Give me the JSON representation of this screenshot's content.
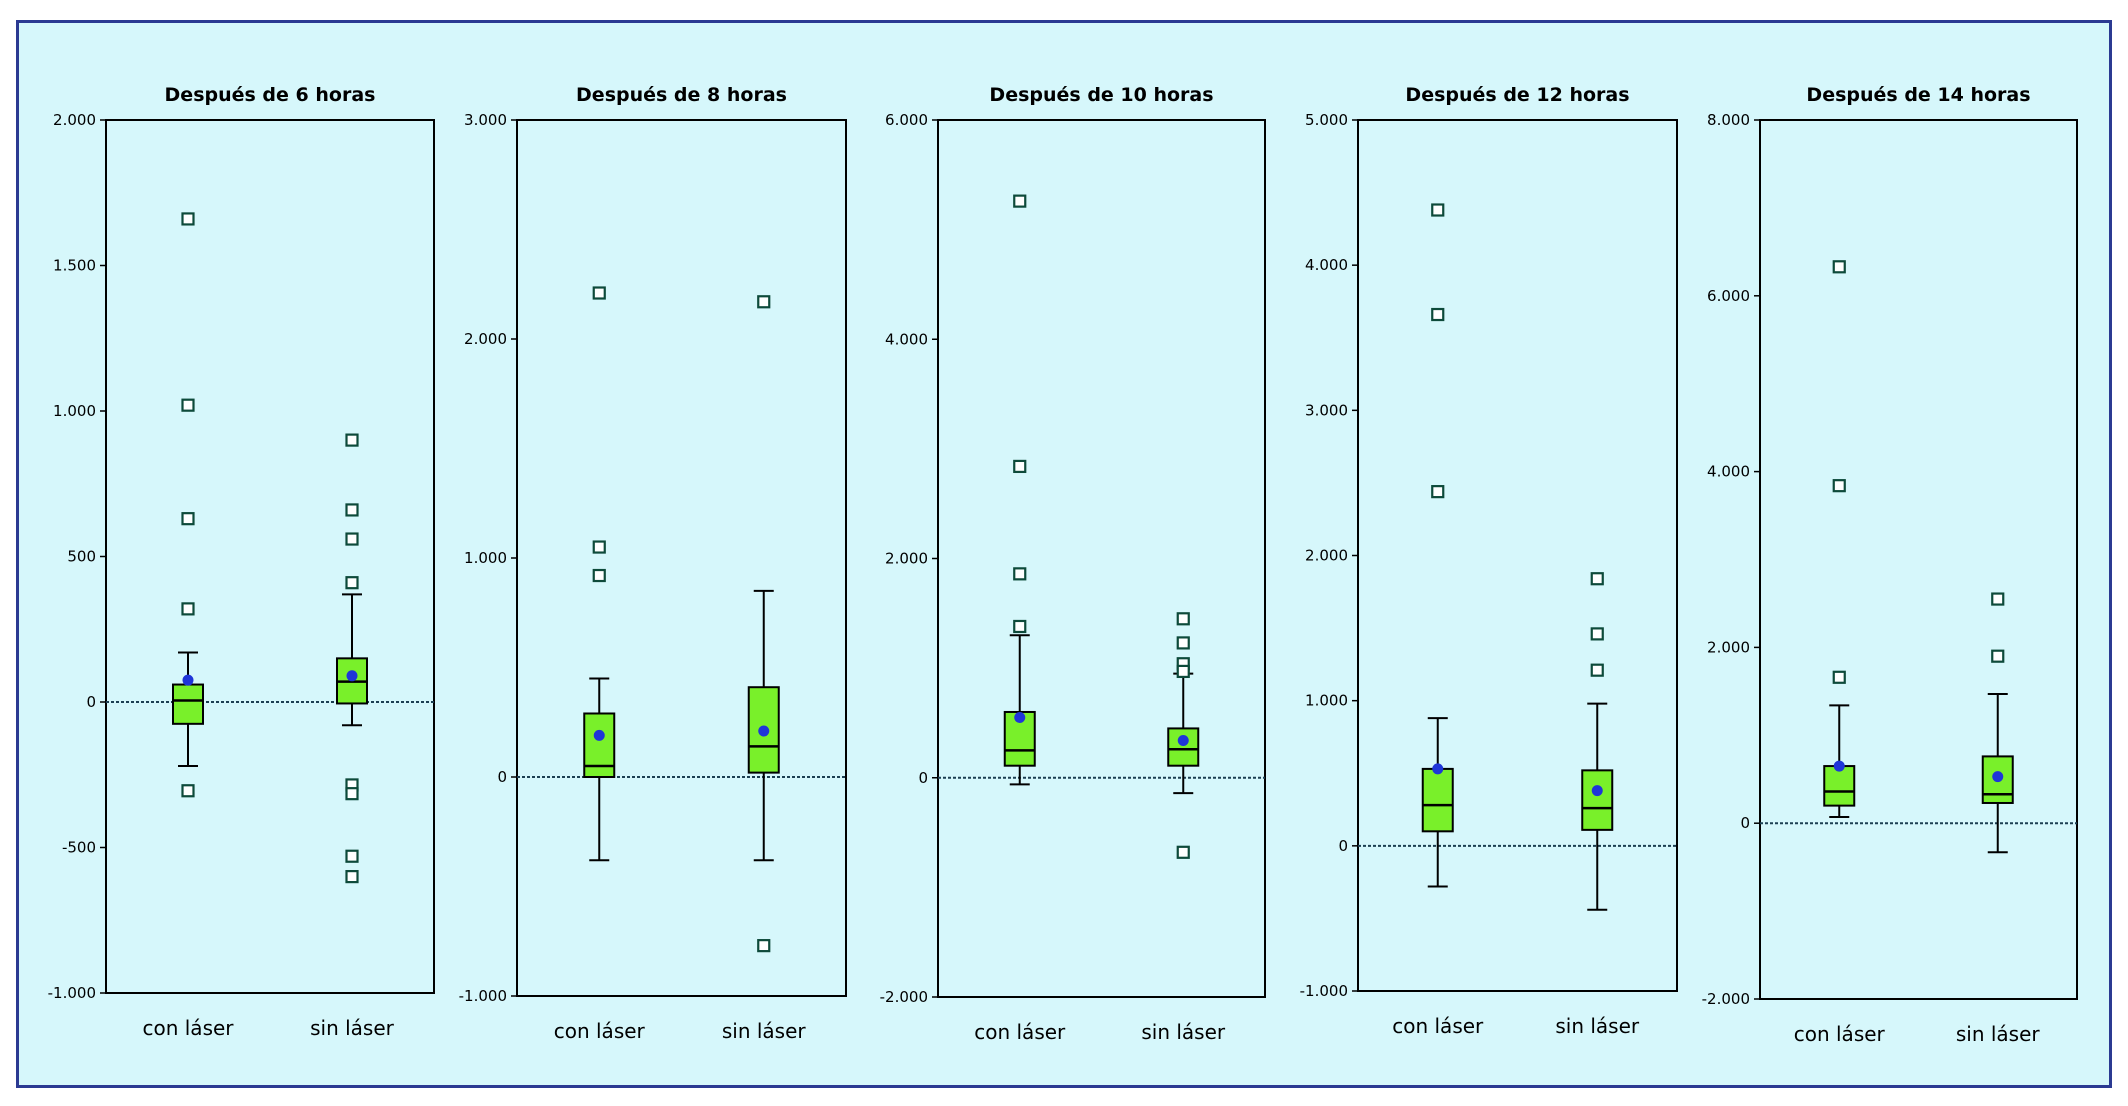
{
  "colors": {
    "frame_border": "#2b3a92",
    "background": "#d6f7fb",
    "box_fill": "#79f02a",
    "mean_marker": "#1f35d8",
    "outlier_marker": "#0d4a3a",
    "zero_line": "#1c3f52"
  },
  "chart_data": [
    {
      "type": "boxplot",
      "title": "Después de 6 horas",
      "categories": [
        "con láser",
        "sin láser"
      ],
      "ylim": [
        -1000,
        2000
      ],
      "yticks": [
        -1000,
        -500,
        0,
        500,
        1000,
        1500,
        2000
      ],
      "ytick_labels": [
        "-1.000",
        "-500",
        "0",
        "500",
        "1.000",
        "1.500",
        "2.000"
      ],
      "boxes": [
        {
          "category": "con láser",
          "whisker_low": -220,
          "q1": -75,
          "median": 5,
          "q3": 60,
          "whisker_high": 170,
          "mean": 75,
          "outliers": [
            1660,
            1020,
            630,
            320,
            -305
          ]
        },
        {
          "category": "sin láser",
          "whisker_low": -80,
          "q1": -5,
          "median": 70,
          "q3": 150,
          "whisker_high": 370,
          "mean": 90,
          "outliers": [
            900,
            660,
            560,
            410,
            -285,
            -315,
            -530,
            -600
          ]
        }
      ]
    },
    {
      "type": "boxplot",
      "title": "Después de 8 horas",
      "categories": [
        "con láser",
        "sin láser"
      ],
      "ylim": [
        -1000,
        3000
      ],
      "yticks": [
        -1000,
        0,
        1000,
        2000,
        3000
      ],
      "ytick_labels": [
        "-1.000",
        "0",
        "1.000",
        "2.000",
        "3.000"
      ],
      "boxes": [
        {
          "category": "con láser",
          "whisker_low": -380,
          "q1": 0,
          "median": 50,
          "q3": 290,
          "whisker_high": 450,
          "mean": 190,
          "outliers": [
            2210,
            1050,
            920
          ]
        },
        {
          "category": "sin láser",
          "whisker_low": -380,
          "q1": 20,
          "median": 140,
          "q3": 410,
          "whisker_high": 850,
          "mean": 210,
          "outliers": [
            2170,
            -770
          ]
        }
      ]
    },
    {
      "type": "boxplot",
      "title": "Después de 10 horas",
      "categories": [
        "con láser",
        "sin láser"
      ],
      "ylim": [
        -2000,
        6000
      ],
      "yticks": [
        -2000,
        0,
        2000,
        4000,
        6000
      ],
      "ytick_labels": [
        "-2.000",
        "0",
        "2.000",
        "4.000",
        "6.000"
      ],
      "boxes": [
        {
          "category": "con láser",
          "whisker_low": -60,
          "q1": 110,
          "median": 250,
          "q3": 600,
          "whisker_high": 1300,
          "mean": 550,
          "outliers": [
            5260,
            2840,
            1860,
            1380
          ]
        },
        {
          "category": "sin láser",
          "whisker_low": -140,
          "q1": 110,
          "median": 260,
          "q3": 450,
          "whisker_high": 950,
          "mean": 340,
          "outliers": [
            1450,
            1230,
            1040,
            970,
            -680
          ]
        }
      ]
    },
    {
      "type": "boxplot",
      "title": "Después de 12 horas",
      "categories": [
        "con láser",
        "sin láser"
      ],
      "ylim": [
        -1000,
        5000
      ],
      "yticks": [
        -1000,
        0,
        1000,
        2000,
        3000,
        4000,
        5000
      ],
      "ytick_labels": [
        "-1.000",
        "0",
        "1.000",
        "2.000",
        "3.000",
        "4.000",
        "5.000"
      ],
      "boxes": [
        {
          "category": "con láser",
          "whisker_low": -280,
          "q1": 100,
          "median": 280,
          "q3": 530,
          "whisker_high": 880,
          "mean": 530,
          "outliers": [
            4380,
            3660,
            2440
          ]
        },
        {
          "category": "sin láser",
          "whisker_low": -440,
          "q1": 110,
          "median": 260,
          "q3": 520,
          "whisker_high": 980,
          "mean": 380,
          "outliers": [
            1840,
            1460,
            1210
          ]
        }
      ]
    },
    {
      "type": "boxplot",
      "title": "Después de 14 horas",
      "categories": [
        "con láser",
        "sin láser"
      ],
      "ylim": [
        -2000,
        8000
      ],
      "yticks": [
        -2000,
        0,
        2000,
        4000,
        6000,
        8000
      ],
      "ytick_labels": [
        "-2.000",
        "0",
        "2.000",
        "4.000",
        "6.000",
        "8.000"
      ],
      "boxes": [
        {
          "category": "con láser",
          "whisker_low": 70,
          "q1": 200,
          "median": 360,
          "q3": 650,
          "whisker_high": 1340,
          "mean": 650,
          "outliers": [
            6330,
            3840,
            1660
          ]
        },
        {
          "category": "sin láser",
          "whisker_low": -330,
          "q1": 230,
          "median": 330,
          "q3": 760,
          "whisker_high": 1470,
          "mean": 530,
          "outliers": [
            2550,
            1900
          ]
        }
      ]
    }
  ]
}
